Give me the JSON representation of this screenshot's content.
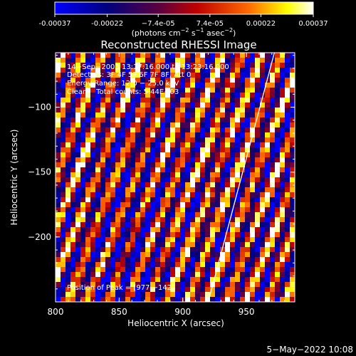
{
  "colorbar": {
    "ticks": [
      "-0.00037",
      "-0.00022",
      "−7.4e-05",
      "7.4e-05",
      "0.00022",
      "0.00037"
    ],
    "tick_values": [
      -0.00037,
      -0.00022,
      -7.4e-05,
      7.4e-05,
      0.00022,
      0.00037
    ],
    "units_main": "(photons cm",
    "units_sup1": "−2",
    "units_mid1": " s",
    "units_sup2": "−1",
    "units_mid2": " asec",
    "units_sup3": "−2",
    "units_end": ")"
  },
  "plot": {
    "title": "Reconstructed RHESSI Image",
    "annotation_lines": [
      "14−Sep−2003 13:17:16.000 to 13:23:16.000",
      "Detectors: 3F 4F 5F 6F 7F 8F, Att 0",
      "Energy Range: 12.0 − 25.0 keV",
      "Clean    Total counts: 5.44E+03"
    ],
    "peak_label": "Position of Peak = [977,−142]"
  },
  "chart_data": {
    "type": "heatmap",
    "title": "Reconstructed RHESSI Image",
    "xlabel": "Heliocentric X (arcsec)",
    "ylabel": "Heliocentric Y (arcsec)",
    "xlim": [
      800,
      988
    ],
    "ylim": [
      -250,
      -58
    ],
    "x_ticks": [
      800,
      850,
      900,
      950
    ],
    "y_ticks": [
      -100,
      -150,
      -200
    ],
    "x_tick_labels": [
      "800",
      "850",
      "900",
      "950"
    ],
    "y_tick_labels": [
      "−100",
      "−150",
      "−200"
    ],
    "color_range": [
      -0.00037,
      0.00037
    ],
    "colormap": [
      "#0000ff",
      "#00007f",
      "#7f0000",
      "#ff0000",
      "#ffff00",
      "#ffffff"
    ],
    "limb_line": [
      [
        920,
        -250
      ],
      [
        972,
        -58
      ]
    ],
    "peak_position": [
      977,
      -142
    ],
    "grid": false
  },
  "footer": {
    "date": "5−May−2022 10:08"
  }
}
